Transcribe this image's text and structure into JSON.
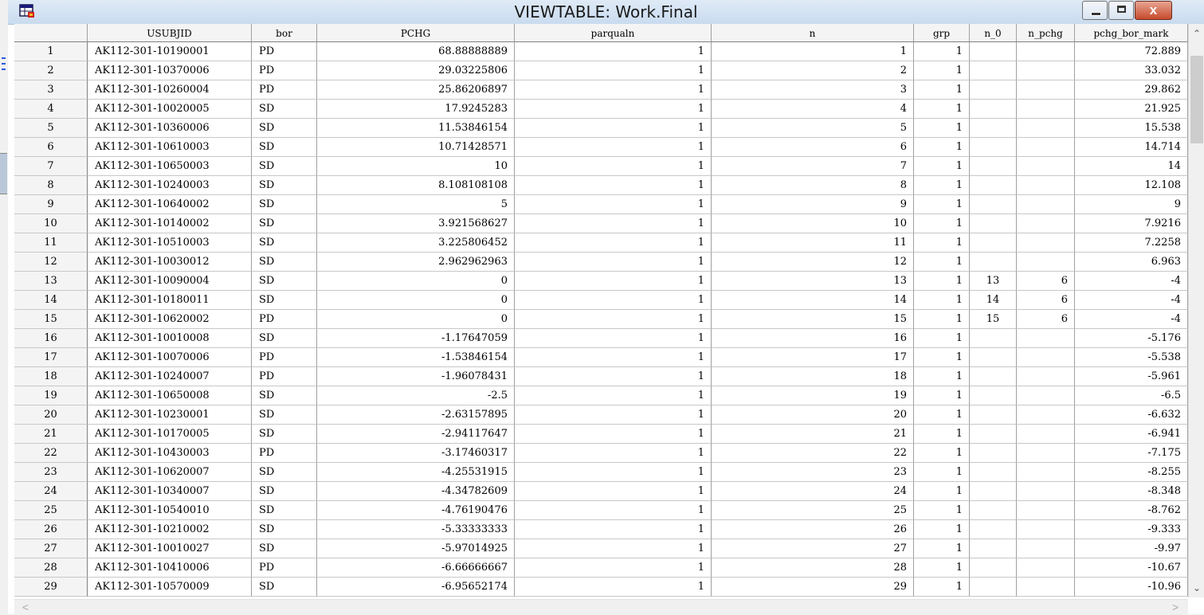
{
  "window": {
    "title": "VIEWTABLE: Work.Final",
    "minimize_glyph": "",
    "maximize_glyph": "",
    "close_glyph": "x"
  },
  "columns": [
    "USUBJID",
    "bor",
    "PCHG",
    "parqualn",
    "n",
    "grp",
    "n_0",
    "n_pchg",
    "pchg_bor_mark"
  ],
  "rows": [
    {
      "obs": "1",
      "USUBJID": "AK112-301-10190001",
      "bor": "PD",
      "PCHG": "68.88888889",
      "parqualn": "1",
      "n": "1",
      "grp": "1",
      "n_0": "",
      "n_pchg": "",
      "pchg_bor_mark": "72.889"
    },
    {
      "obs": "2",
      "USUBJID": "AK112-301-10370006",
      "bor": "PD",
      "PCHG": "29.03225806",
      "parqualn": "1",
      "n": "2",
      "grp": "1",
      "n_0": "",
      "n_pchg": "",
      "pchg_bor_mark": "33.032"
    },
    {
      "obs": "3",
      "USUBJID": "AK112-301-10260004",
      "bor": "PD",
      "PCHG": "25.86206897",
      "parqualn": "1",
      "n": "3",
      "grp": "1",
      "n_0": "",
      "n_pchg": "",
      "pchg_bor_mark": "29.862"
    },
    {
      "obs": "4",
      "USUBJID": "AK112-301-10020005",
      "bor": "SD",
      "PCHG": "17.9245283",
      "parqualn": "1",
      "n": "4",
      "grp": "1",
      "n_0": "",
      "n_pchg": "",
      "pchg_bor_mark": "21.925"
    },
    {
      "obs": "5",
      "USUBJID": "AK112-301-10360006",
      "bor": "SD",
      "PCHG": "11.53846154",
      "parqualn": "1",
      "n": "5",
      "grp": "1",
      "n_0": "",
      "n_pchg": "",
      "pchg_bor_mark": "15.538"
    },
    {
      "obs": "6",
      "USUBJID": "AK112-301-10610003",
      "bor": "SD",
      "PCHG": "10.71428571",
      "parqualn": "1",
      "n": "6",
      "grp": "1",
      "n_0": "",
      "n_pchg": "",
      "pchg_bor_mark": "14.714"
    },
    {
      "obs": "7",
      "USUBJID": "AK112-301-10650003",
      "bor": "SD",
      "PCHG": "10",
      "parqualn": "1",
      "n": "7",
      "grp": "1",
      "n_0": "",
      "n_pchg": "",
      "pchg_bor_mark": "14"
    },
    {
      "obs": "8",
      "USUBJID": "AK112-301-10240003",
      "bor": "SD",
      "PCHG": "8.108108108",
      "parqualn": "1",
      "n": "8",
      "grp": "1",
      "n_0": "",
      "n_pchg": "",
      "pchg_bor_mark": "12.108"
    },
    {
      "obs": "9",
      "USUBJID": "AK112-301-10640002",
      "bor": "SD",
      "PCHG": "5",
      "parqualn": "1",
      "n": "9",
      "grp": "1",
      "n_0": "",
      "n_pchg": "",
      "pchg_bor_mark": "9"
    },
    {
      "obs": "10",
      "USUBJID": "AK112-301-10140002",
      "bor": "SD",
      "PCHG": "3.921568627",
      "parqualn": "1",
      "n": "10",
      "grp": "1",
      "n_0": "",
      "n_pchg": "",
      "pchg_bor_mark": "7.9216"
    },
    {
      "obs": "11",
      "USUBJID": "AK112-301-10510003",
      "bor": "SD",
      "PCHG": "3.225806452",
      "parqualn": "1",
      "n": "11",
      "grp": "1",
      "n_0": "",
      "n_pchg": "",
      "pchg_bor_mark": "7.2258"
    },
    {
      "obs": "12",
      "USUBJID": "AK112-301-10030012",
      "bor": "SD",
      "PCHG": "2.962962963",
      "parqualn": "1",
      "n": "12",
      "grp": "1",
      "n_0": "",
      "n_pchg": "",
      "pchg_bor_mark": "6.963"
    },
    {
      "obs": "13",
      "USUBJID": "AK112-301-10090004",
      "bor": "SD",
      "PCHG": "0",
      "parqualn": "1",
      "n": "13",
      "grp": "1",
      "n_0": "13",
      "n_pchg": "6",
      "pchg_bor_mark": "-4"
    },
    {
      "obs": "14",
      "USUBJID": "AK112-301-10180011",
      "bor": "SD",
      "PCHG": "0",
      "parqualn": "1",
      "n": "14",
      "grp": "1",
      "n_0": "14",
      "n_pchg": "6",
      "pchg_bor_mark": "-4"
    },
    {
      "obs": "15",
      "USUBJID": "AK112-301-10620002",
      "bor": "PD",
      "PCHG": "0",
      "parqualn": "1",
      "n": "15",
      "grp": "1",
      "n_0": "15",
      "n_pchg": "6",
      "pchg_bor_mark": "-4"
    },
    {
      "obs": "16",
      "USUBJID": "AK112-301-10010008",
      "bor": "SD",
      "PCHG": "-1.17647059",
      "parqualn": "1",
      "n": "16",
      "grp": "1",
      "n_0": "",
      "n_pchg": "",
      "pchg_bor_mark": "-5.176"
    },
    {
      "obs": "17",
      "USUBJID": "AK112-301-10070006",
      "bor": "PD",
      "PCHG": "-1.53846154",
      "parqualn": "1",
      "n": "17",
      "grp": "1",
      "n_0": "",
      "n_pchg": "",
      "pchg_bor_mark": "-5.538"
    },
    {
      "obs": "18",
      "USUBJID": "AK112-301-10240007",
      "bor": "PD",
      "PCHG": "-1.96078431",
      "parqualn": "1",
      "n": "18",
      "grp": "1",
      "n_0": "",
      "n_pchg": "",
      "pchg_bor_mark": "-5.961"
    },
    {
      "obs": "19",
      "USUBJID": "AK112-301-10650008",
      "bor": "SD",
      "PCHG": "-2.5",
      "parqualn": "1",
      "n": "19",
      "grp": "1",
      "n_0": "",
      "n_pchg": "",
      "pchg_bor_mark": "-6.5"
    },
    {
      "obs": "20",
      "USUBJID": "AK112-301-10230001",
      "bor": "SD",
      "PCHG": "-2.63157895",
      "parqualn": "1",
      "n": "20",
      "grp": "1",
      "n_0": "",
      "n_pchg": "",
      "pchg_bor_mark": "-6.632"
    },
    {
      "obs": "21",
      "USUBJID": "AK112-301-10170005",
      "bor": "SD",
      "PCHG": "-2.94117647",
      "parqualn": "1",
      "n": "21",
      "grp": "1",
      "n_0": "",
      "n_pchg": "",
      "pchg_bor_mark": "-6.941"
    },
    {
      "obs": "22",
      "USUBJID": "AK112-301-10430003",
      "bor": "PD",
      "PCHG": "-3.17460317",
      "parqualn": "1",
      "n": "22",
      "grp": "1",
      "n_0": "",
      "n_pchg": "",
      "pchg_bor_mark": "-7.175"
    },
    {
      "obs": "23",
      "USUBJID": "AK112-301-10620007",
      "bor": "SD",
      "PCHG": "-4.25531915",
      "parqualn": "1",
      "n": "23",
      "grp": "1",
      "n_0": "",
      "n_pchg": "",
      "pchg_bor_mark": "-8.255"
    },
    {
      "obs": "24",
      "USUBJID": "AK112-301-10340007",
      "bor": "SD",
      "PCHG": "-4.34782609",
      "parqualn": "1",
      "n": "24",
      "grp": "1",
      "n_0": "",
      "n_pchg": "",
      "pchg_bor_mark": "-8.348"
    },
    {
      "obs": "25",
      "USUBJID": "AK112-301-10540010",
      "bor": "SD",
      "PCHG": "-4.76190476",
      "parqualn": "1",
      "n": "25",
      "grp": "1",
      "n_0": "",
      "n_pchg": "",
      "pchg_bor_mark": "-8.762"
    },
    {
      "obs": "26",
      "USUBJID": "AK112-301-10210002",
      "bor": "SD",
      "PCHG": "-5.33333333",
      "parqualn": "1",
      "n": "26",
      "grp": "1",
      "n_0": "",
      "n_pchg": "",
      "pchg_bor_mark": "-9.333"
    },
    {
      "obs": "27",
      "USUBJID": "AK112-301-10010027",
      "bor": "SD",
      "PCHG": "-5.97014925",
      "parqualn": "1",
      "n": "27",
      "grp": "1",
      "n_0": "",
      "n_pchg": "",
      "pchg_bor_mark": "-9.97"
    },
    {
      "obs": "28",
      "USUBJID": "AK112-301-10410006",
      "bor": "PD",
      "PCHG": "-6.66666667",
      "parqualn": "1",
      "n": "28",
      "grp": "1",
      "n_0": "",
      "n_pchg": "",
      "pchg_bor_mark": "-10.67"
    },
    {
      "obs": "29",
      "USUBJID": "AK112-301-10570009",
      "bor": "SD",
      "PCHG": "-6.95652174",
      "parqualn": "1",
      "n": "29",
      "grp": "1",
      "n_0": "",
      "n_pchg": "",
      "pchg_bor_mark": "-10.96"
    }
  ],
  "scrollbar": {
    "up_glyph": "⌃",
    "down_glyph": "⌄",
    "left_glyph": "<",
    "right_glyph": ">"
  },
  "colors": {
    "titlebar": "#c9dbef",
    "close_button": "#c74b2c",
    "grid_line": "#c8c8c8"
  }
}
